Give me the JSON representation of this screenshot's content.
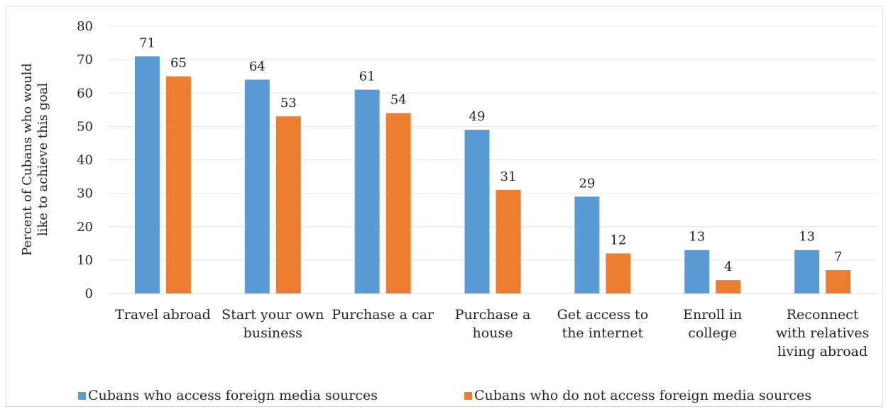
{
  "chart_data": {
    "type": "bar",
    "title": "",
    "ylabel_lines": [
      "Percent of Cubans who would",
      "like to achieve this goal"
    ],
    "ylim": [
      0,
      80
    ],
    "yticks": [
      0,
      10,
      20,
      30,
      40,
      50,
      60,
      70,
      80
    ],
    "grid": true,
    "legend_position": "bottom",
    "categories": [
      [
        "Travel abroad"
      ],
      [
        "Start your own",
        "business"
      ],
      [
        "Purchase a car"
      ],
      [
        "Purchase a",
        "house"
      ],
      [
        "Get access to",
        "the internet"
      ],
      [
        "Enroll in",
        "college"
      ],
      [
        "Reconnect",
        "with relatives",
        "living abroad"
      ]
    ],
    "series": [
      {
        "name": "Cubans who access foreign media sources",
        "color": "#5b9bd5",
        "values": [
          71,
          64,
          61,
          49,
          29,
          13,
          13
        ]
      },
      {
        "name": "Cubans who do not access foreign media sources",
        "color": "#ed7d31",
        "values": [
          65,
          53,
          54,
          31,
          12,
          4,
          7
        ]
      }
    ]
  }
}
